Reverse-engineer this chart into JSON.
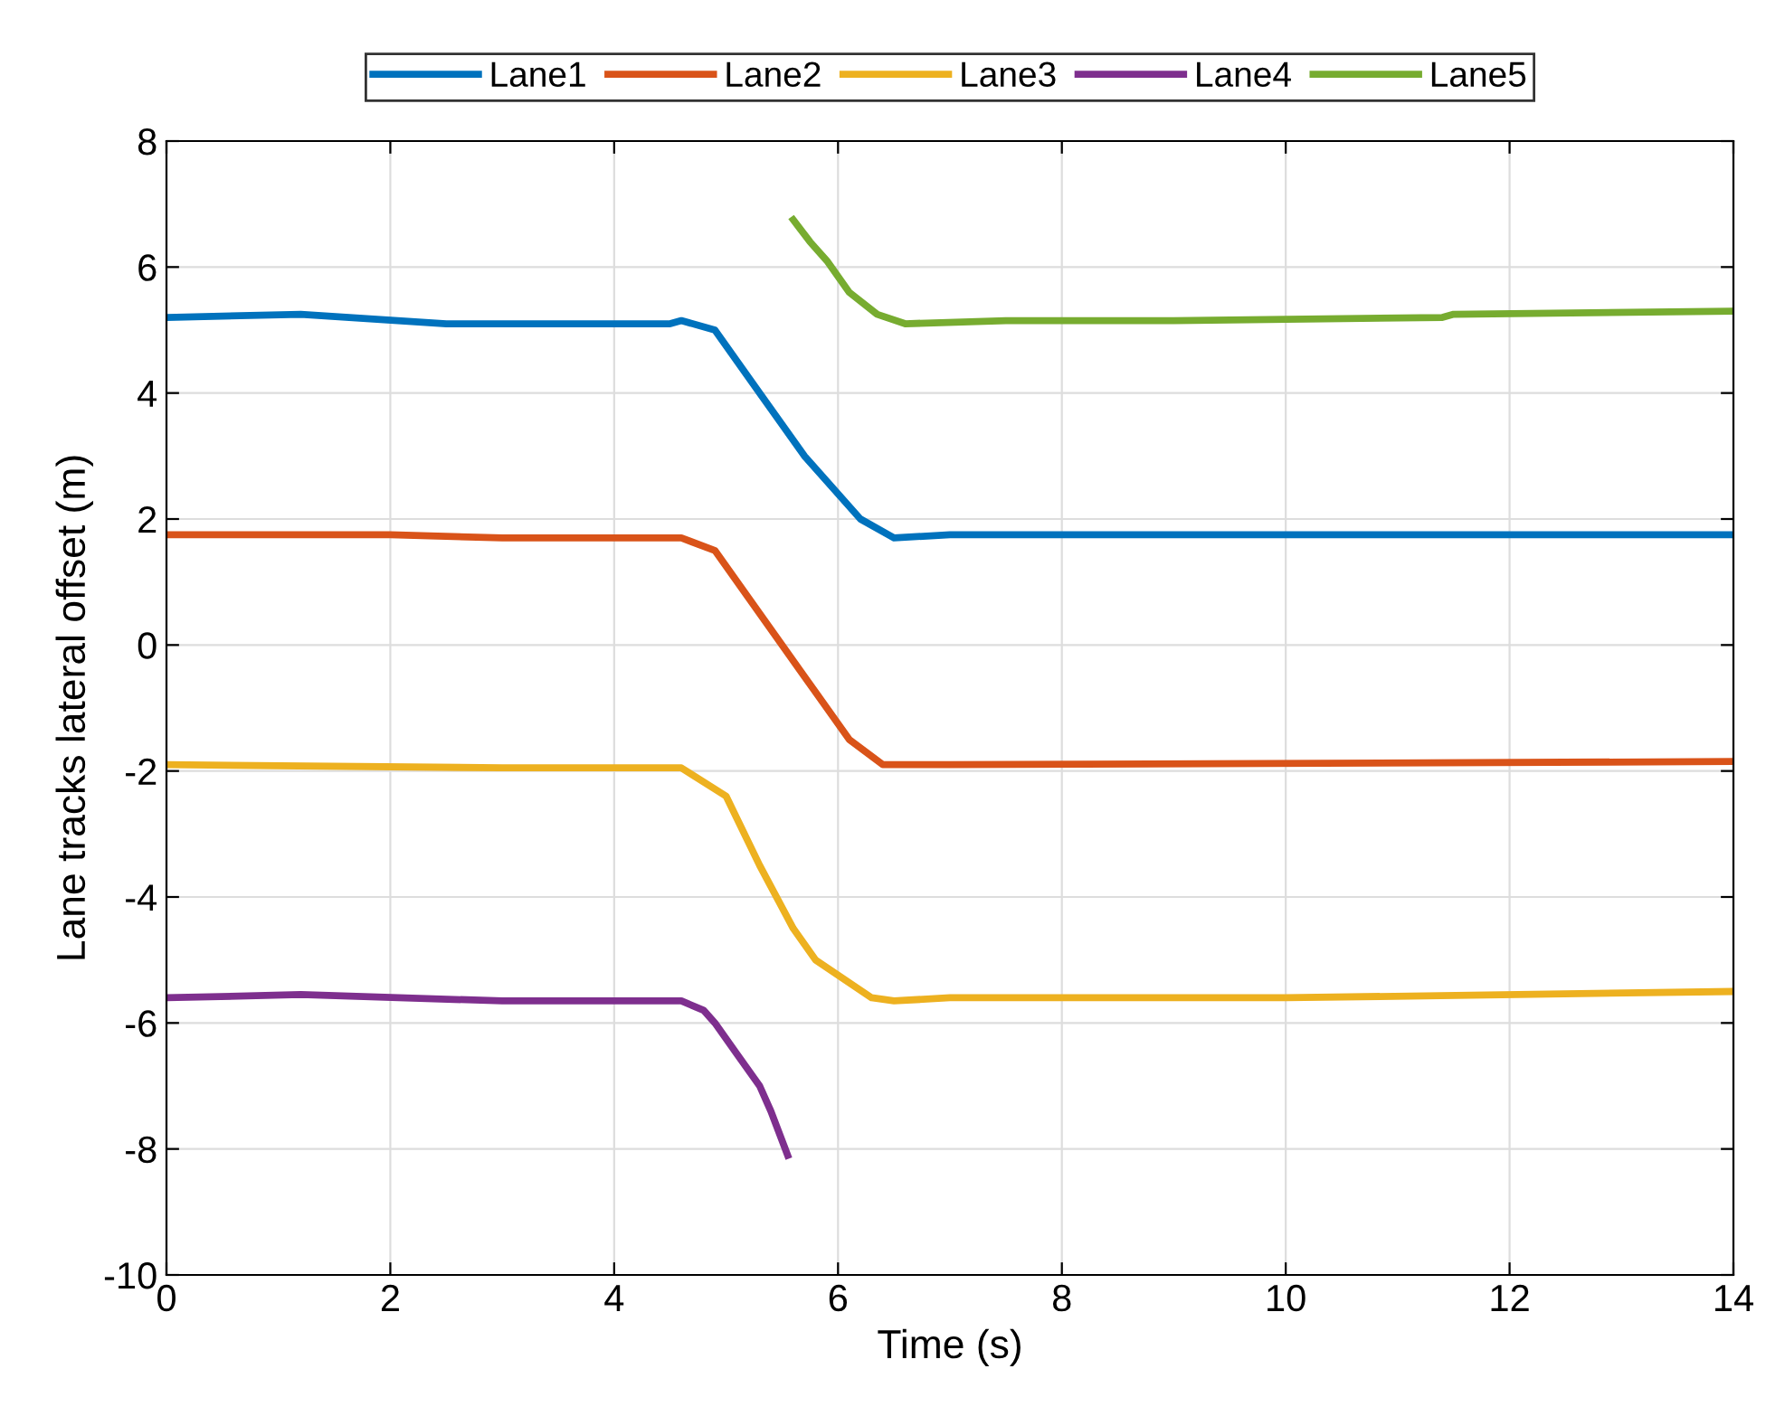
{
  "chart_data": {
    "type": "line",
    "xlabel": "Time (s)",
    "ylabel": "Lane tracks lateral offset (m)",
    "xlim": [
      0,
      14
    ],
    "ylim": [
      -10,
      8
    ],
    "xticks": [
      0,
      2,
      4,
      6,
      8,
      10,
      12,
      14
    ],
    "yticks": [
      -10,
      -8,
      -6,
      -4,
      -2,
      0,
      2,
      4,
      6,
      8
    ],
    "grid": true,
    "legend": "top",
    "marker": "none",
    "line_style": "solid",
    "series": [
      {
        "name": "Lane1",
        "color": "#0072bd",
        "x": [
          0,
          1.2,
          2.5,
          4.5,
          4.6,
          4.9,
          5.3,
          5.7,
          6.2,
          6.5,
          7,
          14
        ],
        "values": [
          5.2,
          5.25,
          5.1,
          5.1,
          5.15,
          5.0,
          4.0,
          3.0,
          2.0,
          1.7,
          1.75,
          1.75
        ]
      },
      {
        "name": "Lane2",
        "color": "#d95319",
        "x": [
          0,
          2,
          3,
          4.6,
          4.9,
          5.3,
          5.7,
          6.1,
          6.4,
          7,
          14
        ],
        "values": [
          1.75,
          1.75,
          1.7,
          1.7,
          1.5,
          0.5,
          -0.5,
          -1.5,
          -1.9,
          -1.9,
          -1.85
        ]
      },
      {
        "name": "Lane3",
        "color": "#edb120",
        "x": [
          0,
          3,
          4.6,
          5.0,
          5.3,
          5.6,
          5.8,
          6.3,
          6.5,
          7,
          10,
          14
        ],
        "values": [
          -1.9,
          -1.95,
          -1.95,
          -2.4,
          -3.5,
          -4.5,
          -5.0,
          -5.6,
          -5.65,
          -5.6,
          -5.6,
          -5.5
        ]
      },
      {
        "name": "Lane4",
        "color": "#7e2f8e",
        "x": [
          0,
          1.2,
          3,
          4.6,
          4.8,
          4.9,
          5.1,
          5.3,
          5.4,
          5.55
        ],
        "values": [
          -5.6,
          -5.55,
          -5.65,
          -5.65,
          -5.8,
          -6.0,
          -6.5,
          -7.0,
          -7.4,
          -8.1
        ]
      },
      {
        "name": "Lane5",
        "color": "#77ac30",
        "x": [
          5.6,
          5.75,
          5.9,
          6.1,
          6.35,
          6.6,
          7.5,
          9,
          11.4,
          11.5,
          14
        ],
        "values": [
          6.75,
          6.4,
          6.1,
          5.6,
          5.25,
          5.1,
          5.15,
          5.15,
          5.2,
          5.25,
          5.3
        ]
      }
    ]
  }
}
